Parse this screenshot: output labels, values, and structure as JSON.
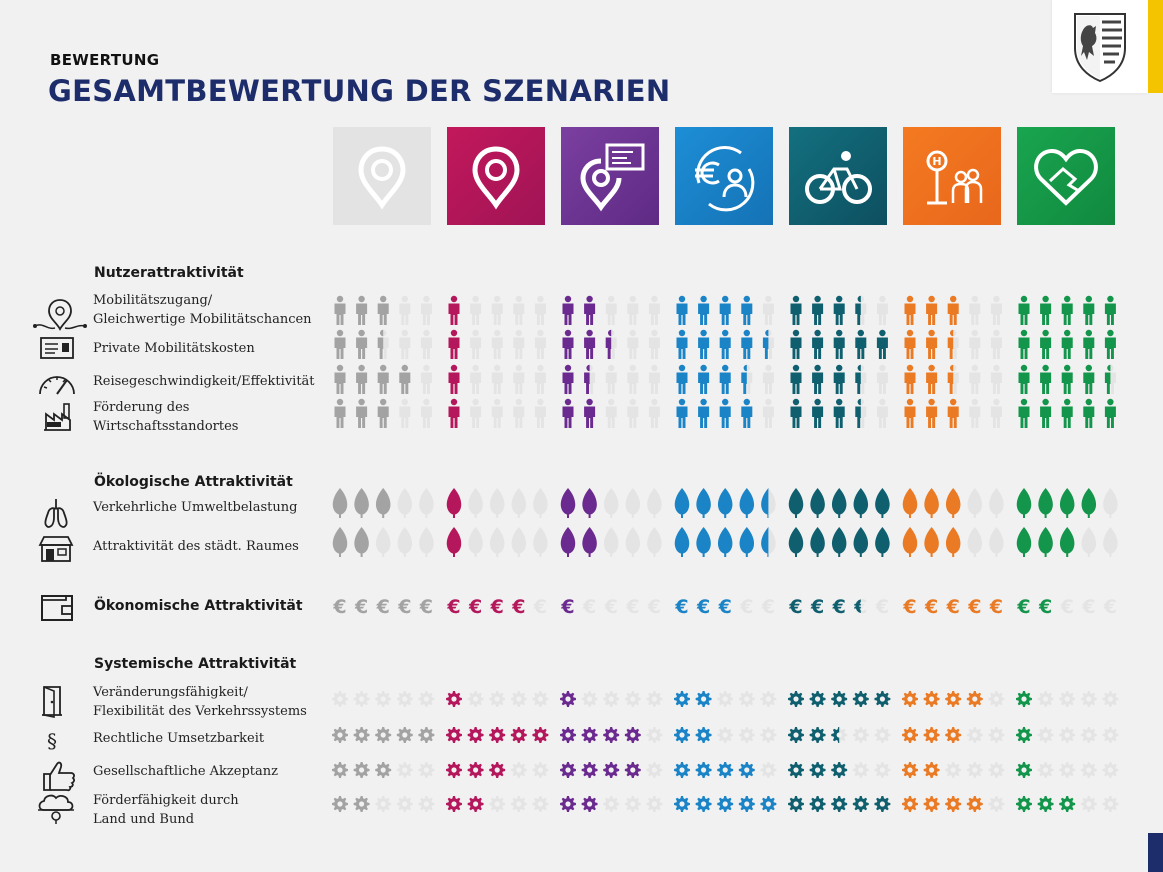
{
  "header": {
    "kicker": "BEWERTUNG",
    "title": "GESAMTBEWERTUNG DER SZENARIEN"
  },
  "colors": {
    "title": "#1d2c6b",
    "yellow_accent": "#f5c400",
    "off": "#e4e4e4"
  },
  "scenarios": [
    {
      "icon": "location-pin-icon",
      "color": "#a3a3a3",
      "tile": "#e3e3e3",
      "tile2": "#e3e3e3"
    },
    {
      "icon": "location-pin-icon",
      "color": "#b5175c",
      "tile": "#c2185b",
      "tile2": "#a01456"
    },
    {
      "icon": "pin-with-card-icon",
      "color": "#6b2a8f",
      "tile": "#7b3fa0",
      "tile2": "#5e2a84"
    },
    {
      "icon": "euro-person-cycle-icon",
      "color": "#1a84c7",
      "tile": "#1d8ed6",
      "tile2": "#1572b5"
    },
    {
      "icon": "bicycle-icon",
      "color": "#0f5f6f",
      "tile": "#13707f",
      "tile2": "#0d4f60"
    },
    {
      "icon": "bus-stop-people-icon",
      "color": "#ea7a24",
      "tile": "#f47a21",
      "tile2": "#e8671c"
    },
    {
      "icon": "handshake-heart-icon",
      "color": "#13964b",
      "tile": "#19a54f",
      "tile2": "#11893f"
    }
  ],
  "sections": [
    {
      "id": "nutzer",
      "heading": "Nutzerattraktivität",
      "symbol": "person",
      "criteria": [
        {
          "label_lines": [
            "Mobilitätszugang/",
            "Gleichwertige Mobilitätschancen"
          ],
          "icon": "location-route-icon",
          "scores": [
            3,
            1,
            2,
            4,
            3.5,
            3,
            5
          ]
        },
        {
          "label_lines": [
            "Private Mobilitätskosten"
          ],
          "icon": "ticket-card-icon",
          "scores": [
            2.5,
            1,
            2.5,
            4.5,
            5,
            2.5,
            5
          ]
        },
        {
          "label_lines": [
            "Reisegeschwindigkeit/Effektivität"
          ],
          "icon": "speedometer-icon",
          "scores": [
            4,
            1,
            1.5,
            3.5,
            3.5,
            2.5,
            4.5
          ]
        },
        {
          "label_lines": [
            "Förderung des",
            "Wirtschaftsstandortes"
          ],
          "icon": "factory-icon",
          "scores": [
            3,
            1,
            2,
            4,
            3.5,
            3,
            5
          ]
        }
      ]
    },
    {
      "id": "oeko",
      "heading": "Ökologische Attraktivität",
      "symbol": "leaf",
      "criteria": [
        {
          "label_lines": [
            "Verkehrliche Umweltbelastung"
          ],
          "icon": "lungs-icon",
          "scores": [
            3,
            1,
            2,
            4.5,
            5,
            3,
            4
          ]
        },
        {
          "label_lines": [
            "Attraktivität des städt. Raumes"
          ],
          "icon": "storefront-icon",
          "scores": [
            2,
            1,
            2,
            4.5,
            5,
            3,
            3
          ]
        }
      ]
    },
    {
      "id": "oekon",
      "heading": "Ökonomische Attraktivität",
      "symbol": "euro",
      "inline": true,
      "criteria": [
        {
          "label_lines": [],
          "icon": "wallet-icon",
          "scores": [
            5,
            4,
            1,
            3,
            3.5,
            5,
            2
          ]
        }
      ]
    },
    {
      "id": "sys",
      "heading": "Systemische Attraktivität",
      "symbol": "gear",
      "criteria": [
        {
          "label_lines": [
            "Veränderungsfähigkeit/",
            "Flexibilität des Verkehrssystems"
          ],
          "icon": "door-icon",
          "scores": [
            0,
            1,
            1,
            2,
            5,
            4,
            1
          ]
        },
        {
          "label_lines": [
            "Rechtliche Umsetzbarkeit"
          ],
          "icon": "paragraph-icon",
          "scores": [
            5,
            5,
            4,
            2,
            2.5,
            3,
            1
          ]
        },
        {
          "label_lines": [
            "Gesellschaftliche Akzeptanz"
          ],
          "icon": "thumbs-up-icon",
          "scores": [
            3,
            3,
            4,
            4,
            3,
            2,
            1
          ]
        },
        {
          "label_lines": [
            "Förderfähigkeit durch",
            "Land und Bund"
          ],
          "icon": "cloud-money-icon",
          "scores": [
            2,
            2,
            2,
            5,
            5,
            4,
            3
          ]
        }
      ]
    }
  ],
  "chart_data": {
    "type": "table",
    "scale_max": 5,
    "rows": [
      {
        "section": "Nutzerattraktivität",
        "criterion": "Mobilitätszugang/ Gleichwertige Mobilitätschancen",
        "values": [
          3,
          1,
          2,
          4,
          3.5,
          3,
          5
        ]
      },
      {
        "section": "Nutzerattraktivität",
        "criterion": "Private Mobilitätskosten",
        "values": [
          2.5,
          1,
          2.5,
          4.5,
          5,
          2.5,
          5
        ]
      },
      {
        "section": "Nutzerattraktivität",
        "criterion": "Reisegeschwindigkeit/Effektivität",
        "values": [
          4,
          1,
          1.5,
          3.5,
          3.5,
          2.5,
          4.5
        ]
      },
      {
        "section": "Nutzerattraktivität",
        "criterion": "Förderung des Wirtschaftsstandortes",
        "values": [
          3,
          1,
          2,
          4,
          3.5,
          3,
          5
        ]
      },
      {
        "section": "Ökologische Attraktivität",
        "criterion": "Verkehrliche Umweltbelastung",
        "values": [
          3,
          1,
          2,
          4.5,
          5,
          3,
          4
        ]
      },
      {
        "section": "Ökologische Attraktivität",
        "criterion": "Attraktivität des städt. Raumes",
        "values": [
          2,
          1,
          2,
          4.5,
          5,
          3,
          3
        ]
      },
      {
        "section": "Ökonomische Attraktivität",
        "criterion": "",
        "values": [
          5,
          4,
          1,
          3,
          3.5,
          5,
          2
        ]
      },
      {
        "section": "Systemische Attraktivität",
        "criterion": "Veränderungsfähigkeit/ Flexibilität des Verkehrssystems",
        "values": [
          0,
          1,
          1,
          2,
          5,
          4,
          1
        ]
      },
      {
        "section": "Systemische Attraktivität",
        "criterion": "Rechtliche Umsetzbarkeit",
        "values": [
          5,
          5,
          4,
          2,
          2.5,
          3,
          1
        ]
      },
      {
        "section": "Systemische Attraktivität",
        "criterion": "Gesellschaftliche Akzeptanz",
        "values": [
          3,
          3,
          4,
          4,
          3,
          2,
          1
        ]
      },
      {
        "section": "Systemische Attraktivität",
        "criterion": "Förderfähigkeit durch Land und Bund",
        "values": [
          2,
          2,
          2,
          5,
          5,
          4,
          3
        ]
      }
    ]
  }
}
